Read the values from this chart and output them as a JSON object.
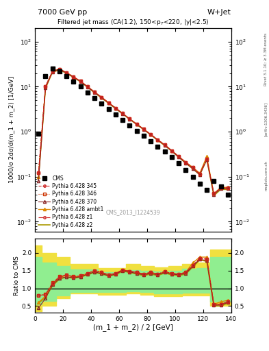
{
  "title_top": "7000 GeV pp",
  "title_right": "W+Jet",
  "main_title": "Filtered jet mass (CA(1.2), 150<p$_{T}$<220, |y|<2.5)",
  "watermark": "CMS_2013_I1224539",
  "rivet_label": "Rivet 3.1.10; ≥ 3.3M events",
  "inspire_label": "[arXiv:1306.3436]",
  "mcplots_label": "mcplots.cern.ch",
  "xlabel": "(m_1 + m_2) / 2 [GeV]",
  "ylabel_main": "1000/σ 2dσ/d(m_1 + m_2) [1/GeV]",
  "ylabel_ratio": "Ratio to CMS",
  "xlim": [
    0,
    140
  ],
  "ylim_main": [
    0.006,
    200
  ],
  "ylim_ratio": [
    0.32,
    2.4
  ],
  "ratio_yticks": [
    0.5,
    1.0,
    1.5,
    2.0
  ],
  "cms_x": [
    2.5,
    7.5,
    12.5,
    17.5,
    22.5,
    27.5,
    32.5,
    37.5,
    42.5,
    47.5,
    52.5,
    57.5,
    62.5,
    67.5,
    72.5,
    77.5,
    82.5,
    87.5,
    92.5,
    97.5,
    102.5,
    107.5,
    112.5,
    117.5,
    122.5,
    127.5,
    132.5,
    137.5
  ],
  "cms_y": [
    0.9,
    17.0,
    25.0,
    22.0,
    17.0,
    13.0,
    10.0,
    7.5,
    5.5,
    4.2,
    3.2,
    2.4,
    1.8,
    1.35,
    1.05,
    0.82,
    0.62,
    0.47,
    0.36,
    0.27,
    0.2,
    0.14,
    0.1,
    0.07,
    0.05,
    0.08,
    0.06,
    0.04
  ],
  "py345_y": [
    0.12,
    10.0,
    22.0,
    24.5,
    20.5,
    16.5,
    13.2,
    10.0,
    7.6,
    5.8,
    4.4,
    3.35,
    2.55,
    1.92,
    1.48,
    1.14,
    0.87,
    0.66,
    0.51,
    0.38,
    0.28,
    0.21,
    0.16,
    0.115,
    0.25,
    0.042,
    0.056,
    0.056
  ],
  "py346_y": [
    0.12,
    10.2,
    22.2,
    24.7,
    20.5,
    16.5,
    13.2,
    10.0,
    7.6,
    5.8,
    4.4,
    3.35,
    2.55,
    1.92,
    1.48,
    1.14,
    0.87,
    0.66,
    0.51,
    0.38,
    0.28,
    0.21,
    0.16,
    0.115,
    0.25,
    0.042,
    0.056,
    0.056
  ],
  "py370_y": [
    0.08,
    9.5,
    21.5,
    24.0,
    20.2,
    16.2,
    13.0,
    9.8,
    7.4,
    5.7,
    4.3,
    3.3,
    2.5,
    1.9,
    1.46,
    1.12,
    0.86,
    0.65,
    0.5,
    0.37,
    0.27,
    0.2,
    0.15,
    0.11,
    0.24,
    0.04,
    0.054,
    0.054
  ],
  "pyambt1_y": [
    0.1,
    9.8,
    22.0,
    24.5,
    20.5,
    16.5,
    13.2,
    10.0,
    7.6,
    5.8,
    4.4,
    3.35,
    2.55,
    1.92,
    1.48,
    1.14,
    0.87,
    0.66,
    0.51,
    0.38,
    0.28,
    0.21,
    0.16,
    0.12,
    0.28,
    0.042,
    0.058,
    0.058
  ],
  "pyz1_y": [
    0.12,
    10.0,
    22.0,
    24.5,
    20.5,
    16.5,
    13.2,
    10.0,
    7.6,
    5.8,
    4.4,
    3.35,
    2.55,
    1.92,
    1.48,
    1.14,
    0.87,
    0.66,
    0.51,
    0.38,
    0.28,
    0.21,
    0.16,
    0.115,
    0.25,
    0.042,
    0.056,
    0.056
  ],
  "pyz2_y": [
    0.09,
    9.2,
    21.0,
    23.5,
    19.8,
    16.0,
    12.8,
    9.7,
    7.3,
    5.6,
    4.25,
    3.25,
    2.48,
    1.88,
    1.44,
    1.11,
    0.85,
    0.64,
    0.49,
    0.37,
    0.27,
    0.2,
    0.15,
    0.11,
    0.24,
    0.038,
    0.052,
    0.052
  ],
  "ratio_x": [
    2.5,
    7.5,
    12.5,
    17.5,
    22.5,
    27.5,
    32.5,
    37.5,
    42.5,
    47.5,
    52.5,
    57.5,
    62.5,
    67.5,
    72.5,
    77.5,
    82.5,
    87.5,
    92.5,
    97.5,
    102.5,
    107.5,
    112.5,
    117.5,
    122.5,
    127.5,
    132.5,
    137.5
  ],
  "ratio345_y": [
    0.8,
    0.82,
    1.15,
    1.32,
    1.38,
    1.32,
    1.35,
    1.42,
    1.5,
    1.45,
    1.38,
    1.42,
    1.52,
    1.48,
    1.45,
    1.4,
    1.45,
    1.4,
    1.47,
    1.42,
    1.4,
    1.45,
    1.65,
    1.85,
    1.82,
    0.55,
    0.55,
    0.62
  ],
  "ratio346_y": [
    0.8,
    0.83,
    1.16,
    1.33,
    1.38,
    1.33,
    1.35,
    1.42,
    1.5,
    1.45,
    1.38,
    1.42,
    1.52,
    1.48,
    1.45,
    1.4,
    1.45,
    1.4,
    1.47,
    1.42,
    1.4,
    1.45,
    1.65,
    1.85,
    1.82,
    0.55,
    0.55,
    0.62
  ],
  "ratio370_y": [
    0.44,
    0.72,
    1.1,
    1.28,
    1.32,
    1.3,
    1.32,
    1.4,
    1.46,
    1.42,
    1.35,
    1.4,
    1.5,
    1.46,
    1.42,
    1.38,
    1.42,
    1.38,
    1.45,
    1.4,
    1.38,
    1.42,
    1.62,
    1.82,
    1.78,
    0.52,
    0.53,
    0.6
  ],
  "ratioambt1_y": [
    0.6,
    0.78,
    1.12,
    1.3,
    1.37,
    1.32,
    1.35,
    1.42,
    1.5,
    1.45,
    1.38,
    1.42,
    1.52,
    1.48,
    1.45,
    1.4,
    1.45,
    1.4,
    1.47,
    1.42,
    1.4,
    1.45,
    1.72,
    1.88,
    1.88,
    0.55,
    0.62,
    0.66
  ],
  "ratioz1_y": [
    0.8,
    0.82,
    1.15,
    1.32,
    1.38,
    1.32,
    1.35,
    1.42,
    1.5,
    1.45,
    1.38,
    1.42,
    1.52,
    1.48,
    1.45,
    1.4,
    1.45,
    1.4,
    1.47,
    1.42,
    1.4,
    1.45,
    1.65,
    1.85,
    1.82,
    0.55,
    0.55,
    0.62
  ],
  "ratioz2_y": [
    0.58,
    0.74,
    1.07,
    1.26,
    1.32,
    1.28,
    1.32,
    1.38,
    1.45,
    1.4,
    1.35,
    1.38,
    1.48,
    1.45,
    1.4,
    1.36,
    1.4,
    1.36,
    1.43,
    1.38,
    1.36,
    1.4,
    1.6,
    1.8,
    1.76,
    0.5,
    0.5,
    0.58
  ],
  "band_yellow_edges": [
    0,
    5,
    15,
    25,
    45,
    65,
    75,
    85,
    95,
    105,
    115,
    125,
    140
  ],
  "band_yellow_low": [
    0.35,
    0.5,
    0.72,
    0.86,
    0.82,
    0.86,
    0.82,
    0.77,
    0.77,
    0.8,
    0.8,
    0.5,
    0.5
  ],
  "band_yellow_high": [
    2.2,
    2.0,
    1.88,
    1.68,
    1.58,
    1.68,
    1.62,
    1.6,
    1.62,
    1.68,
    1.72,
    2.1,
    2.1
  ],
  "band_green_edges": [
    0,
    5,
    15,
    25,
    45,
    65,
    75,
    85,
    95,
    105,
    115,
    125,
    140
  ],
  "band_green_low": [
    0.55,
    0.65,
    0.8,
    0.9,
    0.9,
    0.92,
    0.89,
    0.85,
    0.85,
    0.87,
    0.87,
    0.62,
    0.62
  ],
  "band_green_high": [
    1.88,
    1.73,
    1.63,
    1.53,
    1.46,
    1.52,
    1.5,
    1.48,
    1.5,
    1.56,
    1.58,
    1.88,
    1.88
  ],
  "color_345": "#cc2222",
  "color_346": "#cc3300",
  "color_370": "#882222",
  "color_ambt1": "#dd8800",
  "color_z1": "#cc2222",
  "color_z2": "#aa9900",
  "color_cms": "#000000",
  "bg_main": "#ffffff"
}
